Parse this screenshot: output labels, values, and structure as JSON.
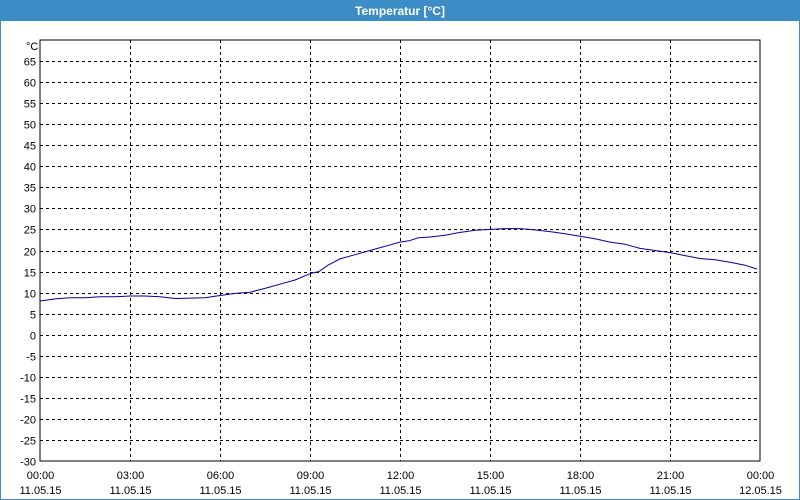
{
  "window": {
    "title": "Temperatur [°C]"
  },
  "chart_data": {
    "type": "line",
    "title": "Temperatur [°C]",
    "ylabel": "°C",
    "ylim": [
      -30,
      70
    ],
    "yticks": [
      65,
      60,
      55,
      50,
      45,
      40,
      35,
      30,
      25,
      20,
      15,
      10,
      5,
      0,
      -5,
      -10,
      -15,
      -20,
      -25,
      -30
    ],
    "xlim": [
      0,
      24
    ],
    "xticks": [
      {
        "h": 0,
        "time": "00:00",
        "date": "11.05.15"
      },
      {
        "h": 3,
        "time": "03:00",
        "date": "11.05.15"
      },
      {
        "h": 6,
        "time": "06:00",
        "date": "11.05.15"
      },
      {
        "h": 9,
        "time": "09:00",
        "date": "11.05.15"
      },
      {
        "h": 12,
        "time": "12:00",
        "date": "11.05.15"
      },
      {
        "h": 15,
        "time": "15:00",
        "date": "11.05.15"
      },
      {
        "h": 18,
        "time": "18:00",
        "date": "11.05.15"
      },
      {
        "h": 21,
        "time": "21:00",
        "date": "11.05.15"
      },
      {
        "h": 24,
        "time": "00:00",
        "date": "12.05.15"
      }
    ],
    "grid": true,
    "color": "#0000a0",
    "series": [
      {
        "x": [
          0,
          0.5,
          1,
          1.5,
          2,
          2.5,
          3,
          3.5,
          4,
          4.5,
          5,
          5.5,
          6,
          6.5,
          7,
          7.5,
          8,
          8.5,
          9,
          9.3,
          9.6,
          10,
          10.5,
          11,
          11.5,
          12,
          12.3,
          12.6,
          13,
          13.5,
          14,
          14.2,
          14.5,
          15,
          15.5,
          16,
          16.3,
          16.6,
          17,
          17.5,
          18,
          18.5,
          19,
          19.5,
          20,
          20.5,
          21,
          21.5,
          22,
          22.5,
          23,
          23.5,
          23.9
        ],
        "y": [
          8,
          8.5,
          8.8,
          8.8,
          9,
          9,
          9.2,
          9.2,
          9.0,
          8.6,
          8.7,
          8.8,
          9.3,
          9.8,
          10.1,
          11,
          12,
          13,
          14.5,
          15,
          16.5,
          18,
          19,
          20,
          21,
          22,
          22.3,
          23,
          23.2,
          23.6,
          24.3,
          24.5,
          24.8,
          25,
          25.2,
          25.2,
          25.0,
          24.8,
          24.5,
          24,
          23.4,
          22.8,
          22,
          21.5,
          20.5,
          20,
          19.5,
          18.8,
          18.1,
          17.8,
          17.2,
          16.5,
          15.6
        ]
      }
    ]
  }
}
